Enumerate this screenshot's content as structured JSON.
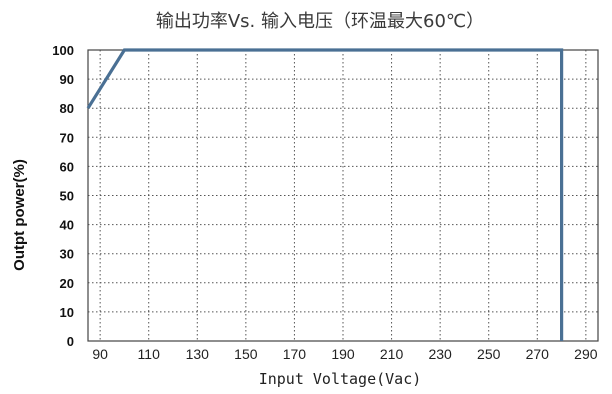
{
  "chart_data": {
    "type": "line",
    "title": "输出功率Vs. 输入电压（环温最大60℃）",
    "xlabel": "Input Voltage(Vac)",
    "ylabel": "Outpt power(%)",
    "x_ticks": [
      "90",
      "110",
      "130",
      "150",
      "170",
      "190",
      "210",
      "230",
      "250",
      "270",
      "290"
    ],
    "y_ticks": [
      "0",
      "10",
      "20",
      "30",
      "40",
      "50",
      "60",
      "70",
      "80",
      "90",
      "100"
    ],
    "xlim": [
      85,
      295
    ],
    "ylim": [
      0,
      100
    ],
    "grid": true,
    "series": [
      {
        "x": [
          85,
          100,
          280,
          280
        ],
        "y": [
          80,
          100,
          100,
          0
        ]
      }
    ],
    "colors": {
      "line": "#4a7094",
      "grid": "#555555",
      "frame": "#444444"
    }
  }
}
